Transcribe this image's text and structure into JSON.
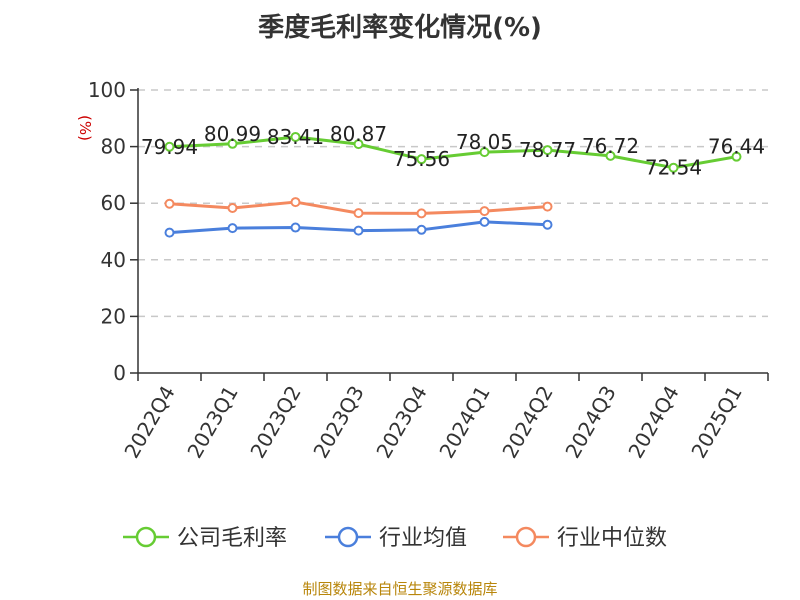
{
  "chart_data": {
    "type": "line",
    "title": "季度毛利率变化情况(%)",
    "ylabel": "(%)",
    "ylim": [
      0,
      100
    ],
    "yticks": [
      0,
      20,
      40,
      60,
      80,
      100
    ],
    "grid": true,
    "legend_position": "bottom",
    "categories": [
      "2022Q4",
      "2023Q1",
      "2023Q2",
      "2023Q3",
      "2023Q4",
      "2024Q1",
      "2024Q2",
      "2024Q3",
      "2024Q4",
      "2025Q1"
    ],
    "series": [
      {
        "name": "公司毛利率",
        "color": "#66cc33",
        "values": [
          79.94,
          80.99,
          83.41,
          80.87,
          75.56,
          78.05,
          78.77,
          76.72,
          72.54,
          76.44
        ],
        "data_labels": [
          "79.94",
          "80.99",
          "83.41",
          "80.87",
          "75.56",
          "78.05",
          "78.77",
          "76.72",
          "72.54",
          "76.44"
        ]
      },
      {
        "name": "行业均值",
        "color": "#4a7fdc",
        "values": [
          49.6,
          51.2,
          51.4,
          50.3,
          50.6,
          53.4,
          52.4,
          null,
          null,
          null
        ]
      },
      {
        "name": "行业中位数",
        "color": "#f4895f",
        "values": [
          59.8,
          58.3,
          60.4,
          56.5,
          56.4,
          57.2,
          58.8,
          null,
          null,
          null
        ]
      }
    ],
    "source": "制图数据来自恒生聚源数据库"
  }
}
